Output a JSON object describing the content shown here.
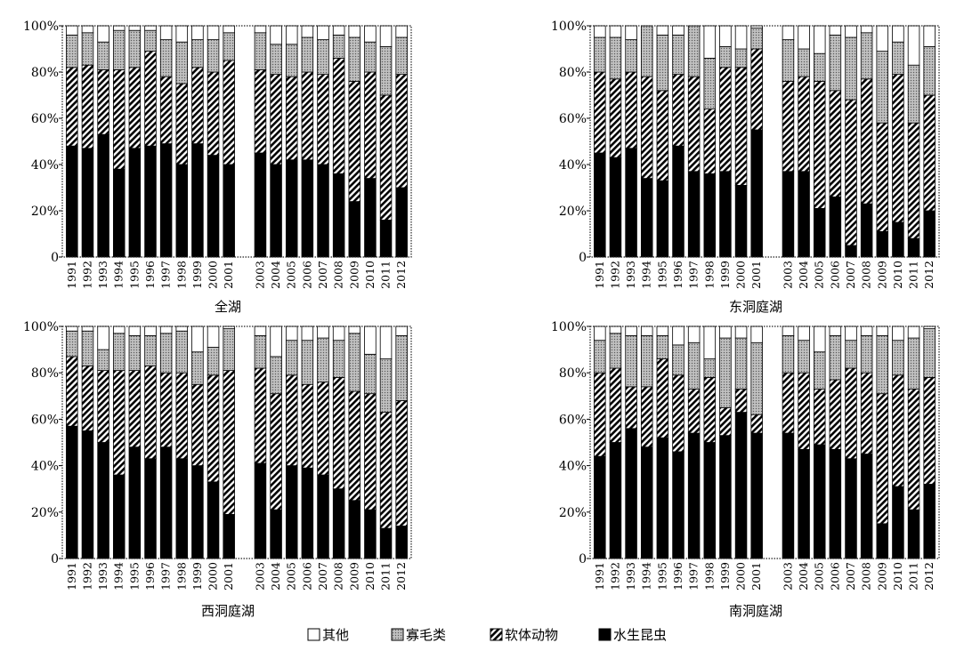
{
  "colors": {
    "aquatic_insects": "#000000",
    "mollusks": "hatch-diagonal-black-white",
    "oligochaetes": "#b8b8b8-dotted",
    "others": "#ffffff"
  },
  "legend": [
    {
      "key": "others",
      "label": "其他"
    },
    {
      "key": "oligochaetes",
      "label": "寡毛类"
    },
    {
      "key": "mollusks",
      "label": "软体动物"
    },
    {
      "key": "aquatic_insects",
      "label": "水生昆虫"
    }
  ],
  "chart_data": [
    {
      "type": "bar",
      "stacked": true,
      "title": "全湖",
      "categories": [
        "1991",
        "1992",
        "1993",
        "1994",
        "1995",
        "1996",
        "1997",
        "1998",
        "1999",
        "2000",
        "2001",
        "2003",
        "2004",
        "2005",
        "2006",
        "2007",
        "2008",
        "2009",
        "2010",
        "2011",
        "2012"
      ],
      "gap_after": "2001",
      "ylim": [
        0,
        100
      ],
      "yticks": [
        "0",
        "20%",
        "40%",
        "60%",
        "80%",
        "100%"
      ],
      "series": [
        {
          "name": "水生昆虫",
          "values": [
            48,
            47,
            53,
            38,
            47,
            48,
            49,
            40,
            49,
            44,
            40,
            45,
            40,
            42,
            42,
            40,
            36,
            24,
            34,
            16,
            30
          ]
        },
        {
          "name": "软体动物",
          "values": [
            34,
            36,
            28,
            43,
            35,
            41,
            29,
            35,
            33,
            36,
            45,
            36,
            39,
            36,
            38,
            39,
            50,
            52,
            46,
            54,
            49
          ]
        },
        {
          "name": "寡毛类",
          "values": [
            14,
            14,
            12,
            17,
            16,
            9,
            16,
            18,
            12,
            14,
            12,
            16,
            13,
            14,
            15,
            15,
            10,
            19,
            13,
            21,
            16
          ]
        },
        {
          "name": "其他",
          "values": [
            4,
            3,
            7,
            2,
            2,
            2,
            6,
            7,
            6,
            6,
            3,
            3,
            8,
            8,
            5,
            6,
            4,
            5,
            7,
            9,
            5
          ]
        }
      ]
    },
    {
      "type": "bar",
      "stacked": true,
      "title": "东洞庭湖",
      "categories": [
        "1991",
        "1992",
        "1993",
        "1994",
        "1995",
        "1996",
        "1997",
        "1998",
        "1999",
        "2000",
        "2001",
        "2003",
        "2004",
        "2005",
        "2006",
        "2007",
        "2008",
        "2009",
        "2010",
        "2011",
        "2012"
      ],
      "gap_after": "2001",
      "ylim": [
        0,
        100
      ],
      "yticks": [
        "0",
        "20%",
        "40%",
        "60%",
        "80%",
        "100%"
      ],
      "series": [
        {
          "name": "水生昆虫",
          "values": [
            45,
            43,
            47,
            34,
            33,
            48,
            37,
            36,
            37,
            31,
            55,
            37,
            37,
            21,
            26,
            5,
            23,
            11,
            15,
            8,
            20
          ]
        },
        {
          "name": "软体动物",
          "values": [
            35,
            34,
            33,
            44,
            39,
            31,
            41,
            28,
            45,
            51,
            35,
            39,
            41,
            55,
            46,
            63,
            54,
            47,
            64,
            50,
            50
          ]
        },
        {
          "name": "寡毛类",
          "values": [
            15,
            18,
            14,
            22,
            24,
            17,
            22,
            22,
            9,
            8,
            9,
            18,
            12,
            12,
            24,
            27,
            20,
            31,
            14,
            25,
            21
          ]
        },
        {
          "name": "其他",
          "values": [
            5,
            5,
            6,
            0,
            4,
            4,
            0,
            14,
            9,
            10,
            1,
            6,
            10,
            12,
            4,
            5,
            3,
            11,
            7,
            17,
            9
          ]
        }
      ]
    },
    {
      "type": "bar",
      "stacked": true,
      "title": "西洞庭湖",
      "categories": [
        "1991",
        "1992",
        "1993",
        "1994",
        "1995",
        "1996",
        "1997",
        "1998",
        "1999",
        "2000",
        "2001",
        "2003",
        "2004",
        "2005",
        "2006",
        "2007",
        "2008",
        "2009",
        "2010",
        "2011",
        "2012"
      ],
      "gap_after": "2001",
      "ylim": [
        0,
        100
      ],
      "yticks": [
        "0",
        "20%",
        "40%",
        "60%",
        "80%",
        "100%"
      ],
      "series": [
        {
          "name": "水生昆虫",
          "values": [
            57,
            55,
            50,
            36,
            48,
            43,
            48,
            43,
            40,
            33,
            19,
            41,
            21,
            40,
            39,
            36,
            30,
            25,
            21,
            13,
            14
          ]
        },
        {
          "name": "软体动物",
          "values": [
            30,
            28,
            31,
            45,
            33,
            40,
            32,
            37,
            35,
            46,
            62,
            41,
            50,
            39,
            36,
            40,
            48,
            47,
            50,
            50,
            54
          ]
        },
        {
          "name": "寡毛类",
          "values": [
            11,
            15,
            9,
            16,
            15,
            13,
            17,
            18,
            14,
            12,
            18,
            14,
            16,
            15,
            19,
            19,
            16,
            25,
            17,
            23,
            28
          ]
        },
        {
          "name": "其他",
          "values": [
            2,
            2,
            10,
            3,
            4,
            4,
            3,
            2,
            11,
            9,
            1,
            4,
            13,
            6,
            6,
            5,
            6,
            3,
            12,
            14,
            4
          ]
        }
      ]
    },
    {
      "type": "bar",
      "stacked": true,
      "title": "南洞庭湖",
      "categories": [
        "1991",
        "1992",
        "1993",
        "1994",
        "1995",
        "1996",
        "1997",
        "1998",
        "1999",
        "2000",
        "2001",
        "2003",
        "2004",
        "2005",
        "2006",
        "2007",
        "2008",
        "2009",
        "2010",
        "2011",
        "2012"
      ],
      "gap_after": "2001",
      "ylim": [
        0,
        100
      ],
      "yticks": [
        "0",
        "20%",
        "40%",
        "60%",
        "80%",
        "100%"
      ],
      "series": [
        {
          "name": "水生昆虫",
          "values": [
            44,
            50,
            56,
            48,
            52,
            46,
            54,
            50,
            53,
            63,
            54,
            54,
            47,
            49,
            47,
            43,
            45,
            15,
            31,
            21,
            32
          ]
        },
        {
          "name": "软体动物",
          "values": [
            36,
            32,
            18,
            26,
            34,
            33,
            19,
            28,
            12,
            10,
            8,
            26,
            33,
            24,
            30,
            39,
            35,
            56,
            48,
            52,
            46
          ]
        },
        {
          "name": "寡毛类",
          "values": [
            14,
            15,
            22,
            22,
            10,
            13,
            20,
            8,
            30,
            22,
            31,
            16,
            14,
            16,
            19,
            12,
            16,
            25,
            15,
            22,
            21
          ]
        },
        {
          "name": "其他",
          "values": [
            6,
            3,
            4,
            4,
            4,
            8,
            7,
            14,
            5,
            5,
            7,
            4,
            6,
            11,
            4,
            6,
            4,
            4,
            6,
            5,
            1
          ]
        }
      ]
    }
  ]
}
